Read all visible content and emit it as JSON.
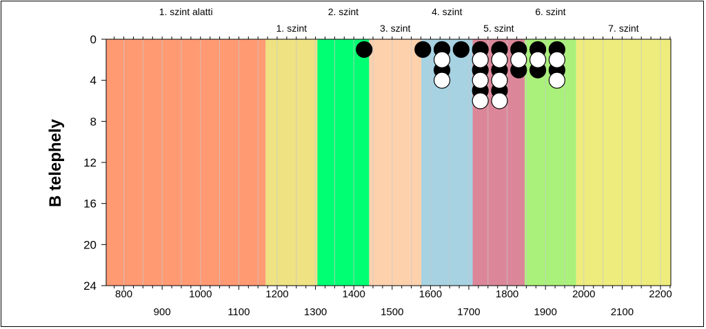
{
  "chart_data": {
    "type": "scatter",
    "ylabel": "B telephely",
    "xlabel": "",
    "xlim": [
      754,
      2227
    ],
    "ylim": [
      24,
      0
    ],
    "y_reversed": true,
    "x_ticks_row1": [
      "800",
      "1000",
      "1200",
      "1400",
      "1600",
      "1800",
      "2000",
      "2200"
    ],
    "x_ticks_row2": [
      "900",
      "1100",
      "1300",
      "1500",
      "1700",
      "1900",
      "2100"
    ],
    "y_ticks": [
      "0",
      "4",
      "8",
      "12",
      "16",
      "20",
      "24"
    ],
    "grid": "vertical",
    "zones": [
      {
        "label": "1. szint alatti",
        "x0": 754,
        "x1": 1170,
        "color": "#FF9A73",
        "label_row": "top"
      },
      {
        "label": "1. szint",
        "x0": 1170,
        "x1": 1305,
        "color": "#EEE282",
        "label_row": "bottom"
      },
      {
        "label": "2. szint",
        "x0": 1305,
        "x1": 1440,
        "color": "#00FF73",
        "label_row": "top"
      },
      {
        "label": "3. szint",
        "x0": 1440,
        "x1": 1576,
        "color": "#FED1AD",
        "label_row": "bottom"
      },
      {
        "label": "4. szint",
        "x0": 1576,
        "x1": 1710,
        "color": "#A6D2E2",
        "label_row": "top"
      },
      {
        "label": "5. szint",
        "x0": 1710,
        "x1": 1846,
        "color": "#DB8799",
        "label_row": "bottom"
      },
      {
        "label": "6. szint",
        "x0": 1846,
        "x1": 1980,
        "color": "#A9F17A",
        "label_row": "top"
      },
      {
        "label": "7. szint",
        "x0": 1980,
        "x1": 2227,
        "color": "#EEEC7D",
        "label_row": "bottom"
      }
    ],
    "series": [
      {
        "fill": "#000000",
        "points": [
          [
            1427,
            1
          ],
          [
            1580,
            1
          ],
          [
            1630,
            1
          ],
          [
            1680,
            1
          ],
          [
            1730,
            1
          ],
          [
            1780,
            1
          ],
          [
            1830,
            1
          ],
          [
            1880,
            1
          ],
          [
            1930,
            1
          ],
          [
            1630,
            3
          ],
          [
            1730,
            3
          ],
          [
            1780,
            3
          ],
          [
            1830,
            3
          ],
          [
            1880,
            3
          ],
          [
            1930,
            3
          ],
          [
            1730,
            5
          ],
          [
            1780,
            5
          ]
        ]
      },
      {
        "fill": "#FFFFFF",
        "points": [
          [
            1630,
            2
          ],
          [
            1730,
            2
          ],
          [
            1780,
            2
          ],
          [
            1830,
            2
          ],
          [
            1880,
            2
          ],
          [
            1930,
            2
          ],
          [
            1630,
            4
          ],
          [
            1730,
            4
          ],
          [
            1780,
            4
          ],
          [
            1930,
            4
          ],
          [
            1730,
            6
          ],
          [
            1780,
            6
          ]
        ]
      }
    ]
  }
}
